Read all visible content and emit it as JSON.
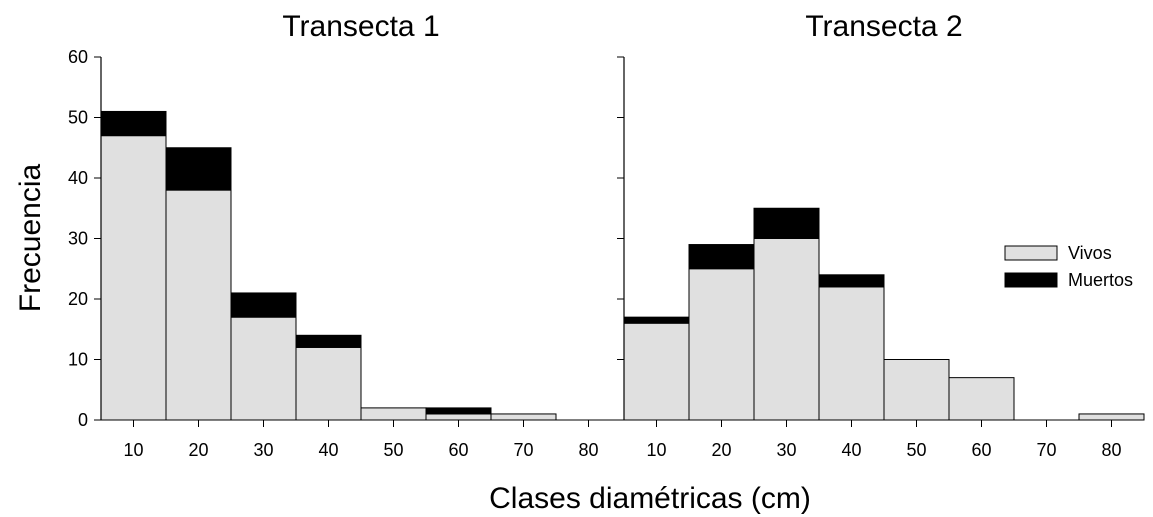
{
  "chart_data": {
    "type": "bar",
    "stacked": true,
    "xlabel": "Clases diamétricas (cm)",
    "ylabel": "Frecuencia",
    "ylim": [
      0,
      60
    ],
    "yticks": [
      0,
      10,
      20,
      30,
      40,
      50,
      60
    ],
    "categories": [
      "10",
      "20",
      "30",
      "40",
      "50",
      "60",
      "70",
      "80"
    ],
    "legend": {
      "position": "right-of-right-panel",
      "entries": [
        {
          "name": "Vivos",
          "color": "#e0e0e0"
        },
        {
          "name": "Muertos",
          "color": "#000000"
        }
      ]
    },
    "panels": [
      {
        "title": "Transecta 1",
        "series": [
          {
            "name": "Vivos",
            "values": [
              47,
              38,
              17,
              12,
              2,
              1,
              1,
              0
            ]
          },
          {
            "name": "Muertos",
            "values": [
              4,
              7,
              4,
              2,
              0,
              1,
              0,
              0
            ]
          }
        ]
      },
      {
        "title": "Transecta 2",
        "series": [
          {
            "name": "Vivos",
            "values": [
              16,
              25,
              30,
              22,
              10,
              7,
              0,
              1
            ]
          },
          {
            "name": "Muertos",
            "values": [
              1,
              4,
              5,
              2,
              0,
              0,
              0,
              0
            ]
          }
        ]
      }
    ]
  }
}
